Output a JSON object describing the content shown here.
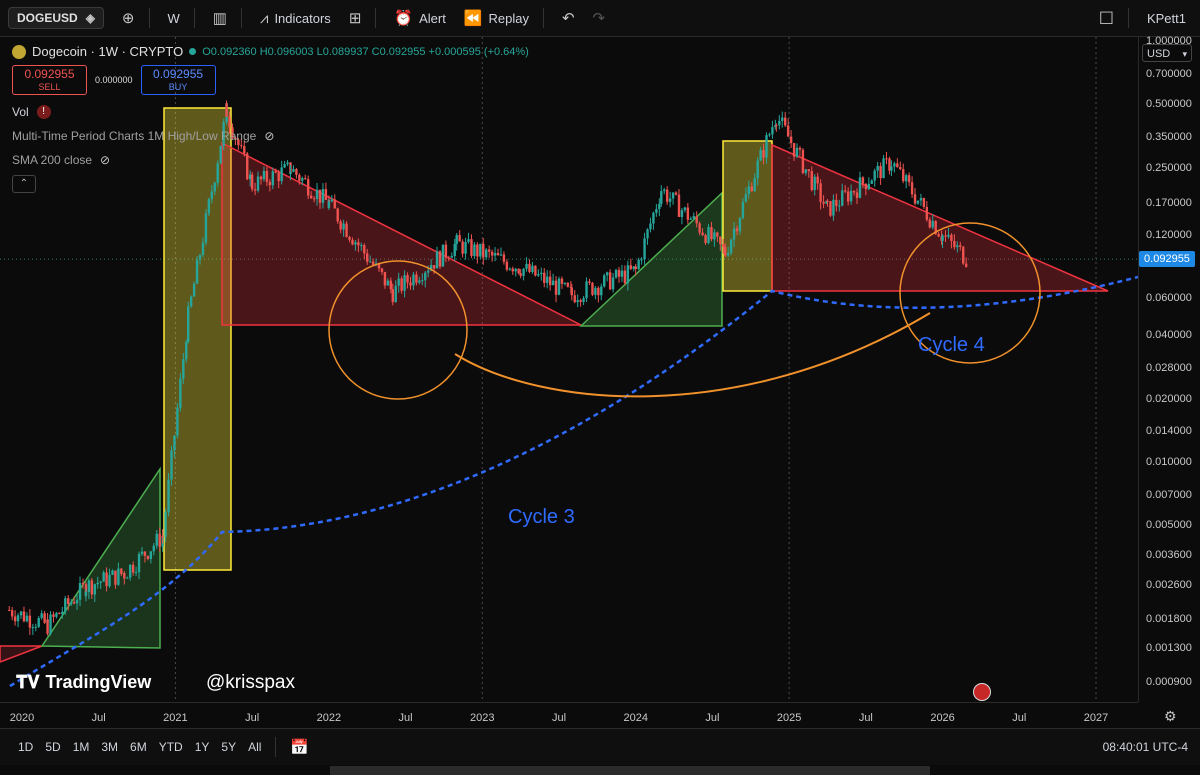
{
  "toolbar": {
    "symbol": "DOGEUSD",
    "interval": "W",
    "indicators_label": "Indicators",
    "alert_label": "Alert",
    "replay_label": "Replay",
    "user": "KPett1"
  },
  "legend": {
    "title": "Dogecoin · 1W · CRYPTO",
    "ohlc": "O0.092360 H0.096003 L0.089937 C0.092955 +0.000595 (+0.64%)",
    "sell_price": "0.092955",
    "sell_label": "SELL",
    "spread": "0.000000",
    "buy_price": "0.092955",
    "buy_label": "BUY",
    "vol_label": "Vol",
    "indicator1": "Multi-Time Period Charts 1M High/Low Range",
    "indicator2": "SMA 200 close"
  },
  "price_axis": {
    "currency": "USD",
    "last_price": "0.092955",
    "ticks": [
      "1.000000",
      "0.700000",
      "0.500000",
      "0.350000",
      "0.250000",
      "0.170000",
      "0.120000",
      "0.060000",
      "0.040000",
      "0.028000",
      "0.020000",
      "0.014000",
      "0.010000",
      "0.007000",
      "0.005000",
      "0.003600",
      "0.002600",
      "0.001800",
      "0.001300",
      "0.000900"
    ]
  },
  "time_axis": {
    "labels": [
      "2020",
      "Jul",
      "2021",
      "Jul",
      "2022",
      "Jul",
      "2023",
      "Jul",
      "2024",
      "Jul",
      "2025",
      "Jul",
      "2026",
      "Jul",
      "2027"
    ]
  },
  "annotations": {
    "cycle3": "Cycle 3",
    "cycle4": "Cycle 4",
    "brand": "TradingView",
    "handle": "@krisspax"
  },
  "bottombar": {
    "ranges": [
      "1D",
      "5D",
      "1M",
      "3M",
      "6M",
      "YTD",
      "1Y",
      "5Y",
      "All"
    ],
    "clock": "08:40:01 UTC-4"
  },
  "colors": {
    "up": "#26a69a",
    "down": "#ef5350",
    "cycle_line": "#2f6bff",
    "arc": "#f0912b",
    "yellow_box": "#ffeb3b",
    "green_triangle": "#4caf50",
    "red_triangle": "#ef3340"
  },
  "chart_data": {
    "type": "candlestick",
    "title": "Dogecoin · 1W · CRYPTO",
    "y_scale": "log",
    "ylim": [
      0.0008,
      1.2
    ],
    "x_range": [
      "2019-11",
      "2027-03"
    ],
    "close_series": [
      {
        "date": "2019-12",
        "close": 0.002
      },
      {
        "date": "2020-03",
        "close": 0.0017
      },
      {
        "date": "2020-06",
        "close": 0.0026
      },
      {
        "date": "2020-09",
        "close": 0.003
      },
      {
        "date": "2020-12",
        "close": 0.0045
      },
      {
        "date": "2021-02",
        "close": 0.05
      },
      {
        "date": "2021-05",
        "close": 0.47
      },
      {
        "date": "2021-07",
        "close": 0.21
      },
      {
        "date": "2021-10",
        "close": 0.25
      },
      {
        "date": "2022-01",
        "close": 0.17
      },
      {
        "date": "2022-06",
        "close": 0.065
      },
      {
        "date": "2022-11",
        "close": 0.11
      },
      {
        "date": "2023-04",
        "close": 0.085
      },
      {
        "date": "2023-08",
        "close": 0.063
      },
      {
        "date": "2024-01",
        "close": 0.082
      },
      {
        "date": "2024-03",
        "close": 0.2
      },
      {
        "date": "2024-08",
        "close": 0.1
      },
      {
        "date": "2024-12",
        "close": 0.45
      },
      {
        "date": "2025-04",
        "close": 0.16
      },
      {
        "date": "2025-09",
        "close": 0.27
      },
      {
        "date": "2026-01",
        "close": 0.12
      },
      {
        "date": "2026-03",
        "close": 0.092955
      }
    ],
    "last": {
      "open": 0.09236,
      "high": 0.096003,
      "low": 0.089937,
      "close": 0.092955,
      "change": 0.000595,
      "change_pct": 0.64
    }
  }
}
